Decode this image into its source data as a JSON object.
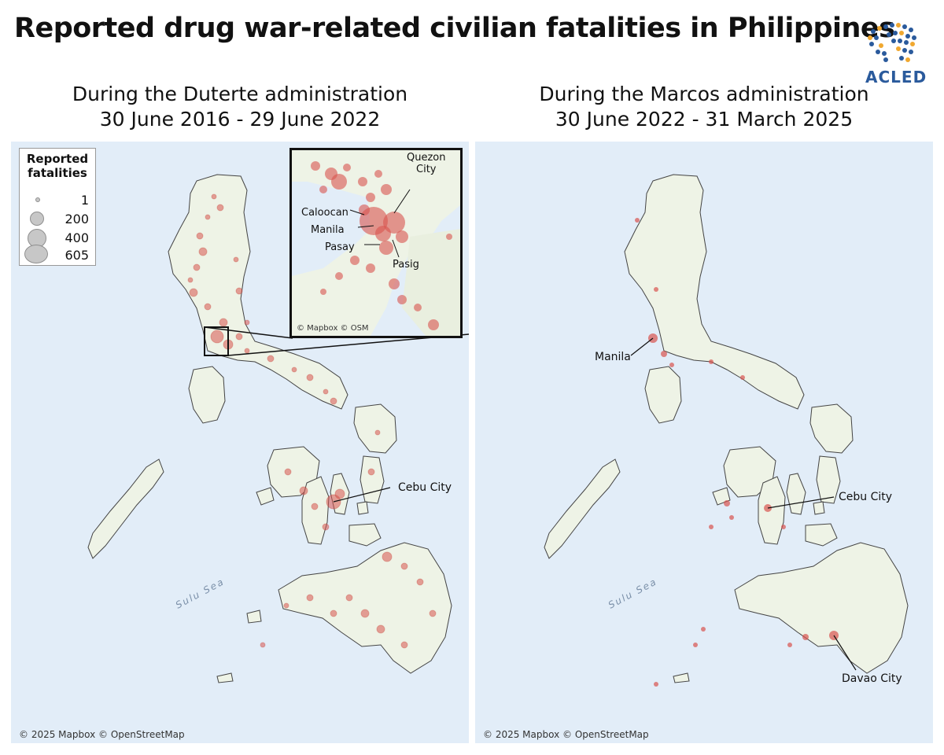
{
  "title": "Reported drug war-related civilian fatalities in Philippines",
  "logo_text": "ACLED",
  "left": {
    "subtitle_line1": "During the Duterte administration",
    "subtitle_line2": "30 June 2016 - 29 June 2022",
    "attribution": "© 2025 Mapbox © OpenStreetMap",
    "sea_label": "Sulu Sea",
    "city_labels": {
      "cebu": "Cebu City"
    }
  },
  "right": {
    "subtitle_line1": "During the Marcos administration",
    "subtitle_line2": "30 June 2022 - 31 March 2025",
    "attribution": "© 2025 Mapbox © OpenStreetMap",
    "sea_label": "Sulu Sea",
    "city_labels": {
      "manila": "Manila",
      "cebu": "Cebu City",
      "davao": "Davao City"
    }
  },
  "legend": {
    "title_line1": "Reported",
    "title_line2": "fatalities",
    "values": [
      "1",
      "200",
      "400",
      "605"
    ]
  },
  "inset": {
    "attribution": "© Mapbox © OSM",
    "labels": {
      "quezon_line1": "Quezon",
      "quezon_line2": "City",
      "caloocan": "Caloocan",
      "manila": "Manila",
      "pasay": "Pasay",
      "pasig": "Pasig"
    }
  },
  "colors": {
    "water": "#e2edf8",
    "land": "#eef3e6",
    "point": "#d9534f",
    "accent": "#2a5a9c"
  }
}
